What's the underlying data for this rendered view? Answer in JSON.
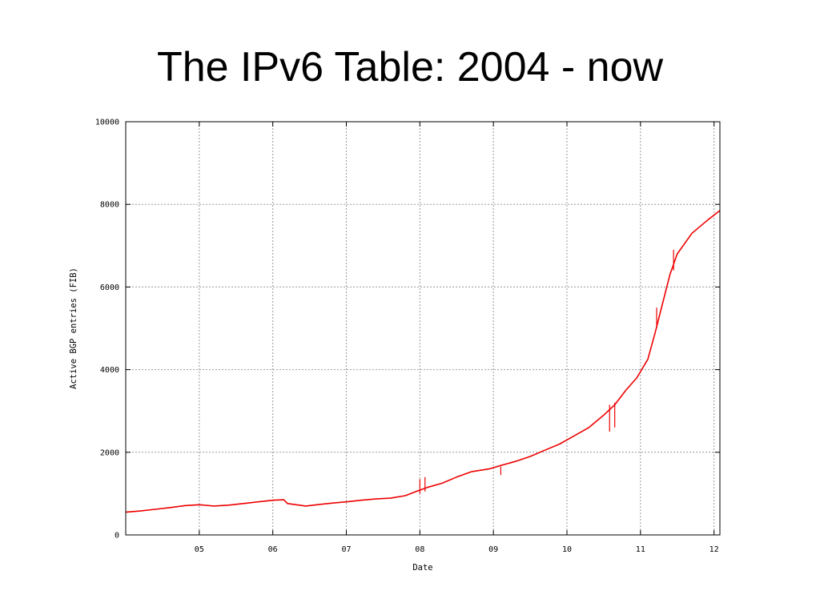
{
  "slide": {
    "title": "The IPv6 Table: 2004 - now"
  },
  "chart_data": {
    "type": "line",
    "title": "",
    "xlabel": "Date",
    "ylabel": "Active BGP entries (FIB)",
    "xlim": [
      2004.0,
      2012.08
    ],
    "ylim": [
      0,
      10000
    ],
    "x_ticks": [
      2005,
      2006,
      2007,
      2008,
      2009,
      2010,
      2011,
      2012
    ],
    "x_tick_labels": [
      "05",
      "06",
      "07",
      "08",
      "09",
      "10",
      "11",
      "12"
    ],
    "y_ticks": [
      0,
      2000,
      4000,
      6000,
      8000,
      10000
    ],
    "y_tick_labels": [
      "0",
      "2000",
      "4000",
      "6000",
      "8000",
      "10000"
    ],
    "grid": true,
    "line_color": "#ee0000",
    "series": [
      {
        "x": [
          2004.0,
          2004.2,
          2004.4,
          2004.6,
          2004.8,
          2005.0,
          2005.2,
          2005.4,
          2005.6,
          2005.8,
          2006.0,
          2006.15,
          2006.2,
          2006.45,
          2006.6,
          2006.8,
          2007.0,
          2007.2,
          2007.4,
          2007.6,
          2007.8,
          2007.95,
          2008.1,
          2008.3,
          2008.5,
          2008.7,
          2008.95,
          2009.1,
          2009.3,
          2009.5,
          2009.7,
          2009.9,
          2010.1,
          2010.3,
          2010.5,
          2010.65,
          2010.8,
          2010.95,
          2011.1,
          2011.2,
          2011.3,
          2011.4,
          2011.5,
          2011.7,
          2011.9,
          2012.08
        ],
        "y": [
          550,
          580,
          620,
          660,
          710,
          730,
          700,
          720,
          760,
          800,
          840,
          850,
          760,
          700,
          730,
          770,
          800,
          840,
          870,
          890,
          950,
          1050,
          1150,
          1250,
          1400,
          1530,
          1600,
          1680,
          1780,
          1900,
          2050,
          2200,
          2400,
          2600,
          2900,
          3150,
          3500,
          3800,
          4250,
          4900,
          5600,
          6300,
          6800,
          7300,
          7600,
          7850
        ]
      }
    ],
    "spikes": [
      {
        "x": 2008.0,
        "from": 1000,
        "to": 1350
      },
      {
        "x": 2008.07,
        "from": 1050,
        "to": 1400
      },
      {
        "x": 2009.1,
        "from": 1650,
        "to": 1450
      },
      {
        "x": 2010.58,
        "from": 3150,
        "to": 2500
      },
      {
        "x": 2010.65,
        "from": 3200,
        "to": 2600
      },
      {
        "x": 2011.22,
        "from": 5000,
        "to": 5500
      },
      {
        "x": 2011.45,
        "from": 6400,
        "to": 6900
      }
    ]
  }
}
